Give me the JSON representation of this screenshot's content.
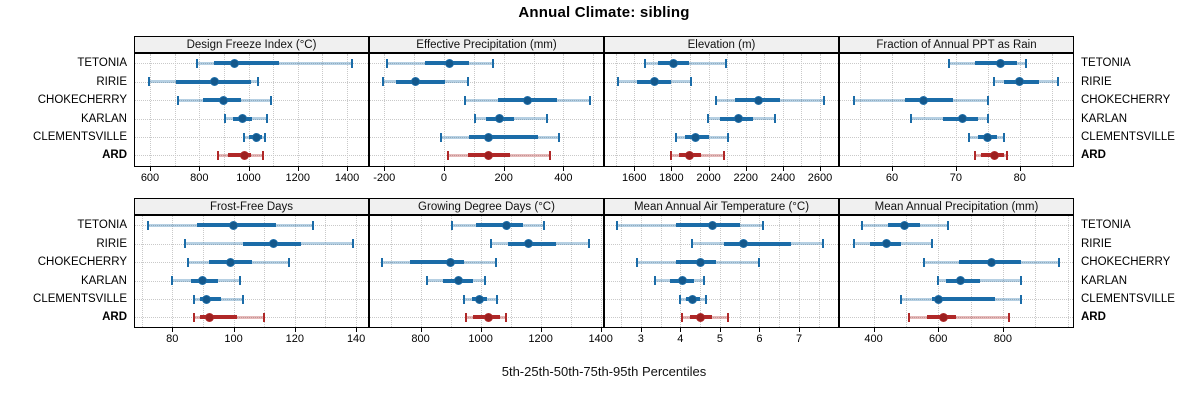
{
  "title": "Annual Climate: sibling",
  "caption": "5th-25th-50th-75th-95th Percentiles",
  "sites": [
    "TETONIA",
    "RIRIE",
    "CHOKECHERRY",
    "KARLAN",
    "CLEMENTSVILLE",
    "ARD"
  ],
  "highlight_site": "ARD",
  "colors": {
    "series_blue": "#1b6ca8",
    "series_blue_dot": "#14588c",
    "series_red": "#b02828",
    "series_red_dot": "#9c1f1f",
    "band_alpha": 0.32,
    "strip_bg": "#f0f0f0",
    "grid": "#c9c9c9",
    "border": "#000000"
  },
  "chart_data": {
    "type": "dotplot-percentile-intervals",
    "title": "Annual Climate: sibling",
    "xlabel": "5th-25th-50th-75th-95th Percentiles",
    "percentiles": [
      "5th",
      "25th",
      "50th",
      "75th",
      "95th"
    ],
    "rows_order": [
      "TETONIA",
      "RIRIE",
      "CHOKECHERRY",
      "KARLAN",
      "CLEMENTSVILLE",
      "ARD"
    ],
    "grid_layout": {
      "rows": 2,
      "cols": 4
    },
    "legend": "none",
    "panels": [
      {
        "title": "Design Freeze Index (°C)",
        "row": 0,
        "col": 0,
        "ticks": [
          600,
          800,
          1000,
          1200,
          1400
        ],
        "grid_step": 100,
        "xlim": [
          535,
          1489
        ],
        "values": [
          [
            790,
            860,
            945,
            1125,
            1420
          ],
          [
            595,
            705,
            860,
            1010,
            1040
          ],
          [
            715,
            815,
            900,
            970,
            1090
          ],
          [
            905,
            935,
            975,
            1015,
            1075
          ],
          [
            982,
            1002,
            1033,
            1053,
            1067
          ],
          [
            875,
            915,
            985,
            1010,
            1058
          ]
        ]
      },
      {
        "title": "Effective Precipitation (mm)",
        "row": 0,
        "col": 1,
        "ticks": [
          -200,
          0,
          200,
          400
        ],
        "grid_step": 100,
        "xlim": [
          -251,
          536
        ],
        "values": [
          [
            -190,
            -65,
            20,
            85,
            165
          ],
          [
            -205,
            -160,
            -95,
            5,
            80
          ],
          [
            70,
            180,
            280,
            380,
            490
          ],
          [
            105,
            140,
            185,
            235,
            345
          ],
          [
            -10,
            85,
            150,
            315,
            385
          ],
          [
            15,
            80,
            150,
            220,
            355
          ]
        ]
      },
      {
        "title": "Elevation (m)",
        "row": 0,
        "col": 2,
        "ticks": [
          1600,
          1800,
          2000,
          2200,
          2400,
          2600
        ],
        "grid_step": 100,
        "xlim": [
          1437,
          2702
        ],
        "values": [
          [
            1660,
            1730,
            1810,
            1895,
            2095
          ],
          [
            1515,
            1615,
            1710,
            1800,
            1905
          ],
          [
            2040,
            2140,
            2270,
            2385,
            2620
          ],
          [
            1995,
            2060,
            2160,
            2240,
            2360
          ],
          [
            1825,
            1875,
            1930,
            2000,
            2105
          ],
          [
            1800,
            1840,
            1895,
            1960,
            2085
          ]
        ]
      },
      {
        "title": "Fraction of Annual PPT as Rain",
        "row": 0,
        "col": 3,
        "ticks": [
          60,
          70,
          80
        ],
        "grid_step": 5,
        "xlim": [
          51.7,
          88.5
        ],
        "values": [
          [
            69,
            73,
            77,
            79.5,
            81
          ],
          [
            76,
            77.5,
            80,
            83,
            86
          ],
          [
            54,
            62,
            65,
            69.5,
            75
          ],
          [
            63,
            68,
            71,
            73.5,
            75
          ],
          [
            72,
            73.5,
            75,
            76.5,
            77.5
          ],
          [
            73,
            74,
            76,
            77.5,
            78
          ]
        ]
      },
      {
        "title": "Frost-Free Days",
        "row": 1,
        "col": 0,
        "ticks": [
          80,
          100,
          120,
          140
        ],
        "grid_step": 10,
        "xlim": [
          67.5,
          144.2
        ],
        "values": [
          [
            72,
            88,
            100,
            114,
            126
          ],
          [
            84,
            103,
            113,
            122,
            139
          ],
          [
            85,
            92,
            99,
            106,
            118
          ],
          [
            80,
            86,
            90,
            95,
            102
          ],
          [
            87,
            89,
            91,
            96,
            103
          ],
          [
            87,
            89,
            92,
            101,
            110
          ]
        ]
      },
      {
        "title": "Growing Degree Days (°C)",
        "row": 1,
        "col": 1,
        "ticks": [
          800,
          1000,
          1200,
          1400
        ],
        "grid_step": 100,
        "xlim": [
          628,
          1411
        ],
        "values": [
          [
            905,
            985,
            1085,
            1140,
            1210
          ],
          [
            1035,
            1090,
            1160,
            1250,
            1360
          ],
          [
            670,
            765,
            900,
            945,
            1050
          ],
          [
            820,
            875,
            925,
            975,
            1015
          ],
          [
            945,
            970,
            995,
            1020,
            1055
          ],
          [
            950,
            975,
            1025,
            1065,
            1085
          ]
        ]
      },
      {
        "title": "Mean Annual Air Temperature (°C)",
        "row": 1,
        "col": 2,
        "ticks": [
          3,
          4,
          5,
          6,
          7
        ],
        "grid_step": 0.5,
        "xlim": [
          2.07,
          8.01
        ],
        "values": [
          [
            2.4,
            3.9,
            4.8,
            5.5,
            6.1
          ],
          [
            4.3,
            5.1,
            5.6,
            6.8,
            7.6
          ],
          [
            2.9,
            3.9,
            4.5,
            4.9,
            6.0
          ],
          [
            3.35,
            3.75,
            4.05,
            4.35,
            4.6
          ],
          [
            4.0,
            4.15,
            4.3,
            4.5,
            4.65
          ],
          [
            4.05,
            4.25,
            4.5,
            4.8,
            5.2
          ]
        ]
      },
      {
        "title": "Mean Annual Precipitation (mm)",
        "row": 1,
        "col": 3,
        "ticks": [
          400,
          600,
          800
        ],
        "grid_step": 100,
        "xlim": [
          293,
          1020
        ],
        "values": [
          [
            365,
            445,
            495,
            545,
            630
          ],
          [
            340,
            390,
            440,
            485,
            580
          ],
          [
            555,
            665,
            765,
            855,
            975
          ],
          [
            600,
            625,
            670,
            730,
            855
          ],
          [
            485,
            580,
            600,
            775,
            855
          ],
          [
            510,
            565,
            615,
            655,
            820
          ]
        ]
      }
    ]
  }
}
